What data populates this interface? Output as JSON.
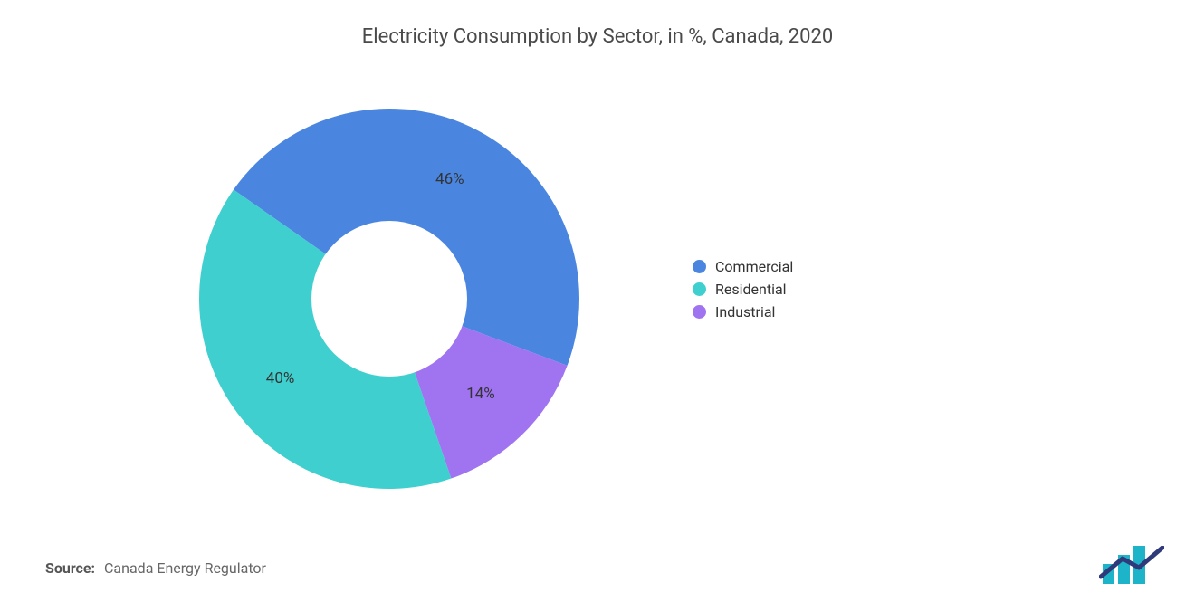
{
  "title": "Electricity Consumption by Sector, in %, Canada, 2020",
  "chart": {
    "type": "donut",
    "start_angle_deg": -145,
    "direction": "clockwise",
    "inner_radius_pct": 40,
    "outer_radius_pct": 100,
    "background_color": "#ffffff",
    "title_fontsize": 22,
    "title_color": "#4a4a4a",
    "label_fontsize": 17,
    "label_color": "#333333",
    "slices": [
      {
        "name": "Commercial",
        "value": 46,
        "label": "46%",
        "color": "#4a86e0"
      },
      {
        "name": "Industrial",
        "value": 14,
        "label": "14%",
        "color": "#a073f0"
      },
      {
        "name": "Residential",
        "value": 40,
        "label": "40%",
        "color": "#3fcfcf"
      }
    ]
  },
  "legend": {
    "fontsize": 16,
    "text_color": "#333333",
    "items": [
      {
        "label": "Commercial",
        "color": "#4a86e0"
      },
      {
        "label": "Residential",
        "color": "#3fcfcf"
      },
      {
        "label": "Industrial",
        "color": "#a073f0"
      }
    ]
  },
  "source": {
    "label": "Source:",
    "text": "Canada Energy Regulator"
  },
  "logo": {
    "bar_color": "#1db4c9",
    "line_color": "#2e3a7a"
  }
}
